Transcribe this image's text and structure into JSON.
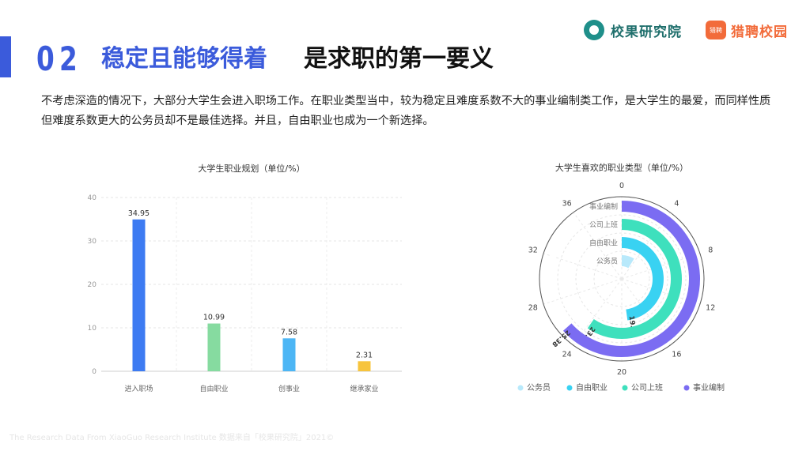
{
  "header": {
    "section_number": "02",
    "title_highlight": "稳定且能够得着",
    "title_rest": "是求职的第一要义",
    "logo_primary": "校果研究院",
    "logo_secondary": "猎聘校园",
    "logo_secondary_mark": "猎聘"
  },
  "description": "不考虑深造的情况下，大部分大学生会进入职场工作。在职业类型当中，较为稳定且难度系数不大的事业编制类工作，是大学生的最爱，而同样性质但难度系数更大的公务员却不是最佳选择。并且，自由职业也成为一个新选择。",
  "footer": "The Research Data From XiaoGuo Research Institute 数据来自「校果研究院」2021©",
  "colors": {
    "accent": "#3b5bdb",
    "bar1": "#3d7bf2",
    "bar2": "#86dba0",
    "bar3": "#4db6f5",
    "bar4": "#f7c43d",
    "ring1": "#b8e9fb",
    "ring2": "#39d2f2",
    "ring3": "#3ee0bd",
    "ring4": "#7b6cf2"
  },
  "chart_data": [
    {
      "type": "bar",
      "title": "大学生职业规划（单位/%）",
      "categories": [
        "进入职场",
        "自由职业",
        "创事业",
        "继承家业"
      ],
      "values": [
        34.95,
        10.99,
        7.58,
        2.31
      ],
      "value_labels": [
        "34.95",
        "10.99",
        "7.58",
        "2.31"
      ],
      "ylim": [
        0,
        40
      ],
      "yticks": [
        0,
        10,
        20,
        30,
        40
      ],
      "grid": true
    },
    {
      "type": "radial-bar",
      "title": "大学生喜欢的职业类型（单位/%）",
      "categories": [
        "公务员",
        "自由职业",
        "公司上班",
        "事业编制"
      ],
      "values": [
        3.5,
        19.12,
        23.85,
        25.38
      ],
      "value_labels": [
        "",
        "19.12",
        "23.85",
        "25.38"
      ],
      "outer_value_label": "31.65",
      "angular_range": [
        0,
        40
      ],
      "angular_ticks": [
        0,
        4,
        8,
        12,
        16,
        20,
        24,
        28,
        32,
        36
      ],
      "legend_position": "bottom",
      "legend": [
        "公务员",
        "自由职业",
        "公司上班",
        "事业编制"
      ]
    }
  ]
}
